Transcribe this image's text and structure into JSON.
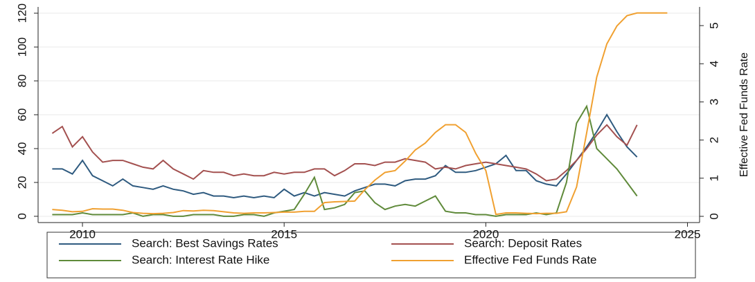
{
  "chart_data": {
    "type": "line",
    "y2label": "Effective Fed Funds Rate",
    "x": [
      2009.25,
      2009.5,
      2009.75,
      2010,
      2010.25,
      2010.5,
      2010.75,
      2011,
      2011.25,
      2011.5,
      2011.75,
      2012,
      2012.25,
      2012.5,
      2012.75,
      2013,
      2013.25,
      2013.5,
      2013.75,
      2014,
      2014.25,
      2014.5,
      2014.75,
      2015,
      2015.25,
      2015.5,
      2015.75,
      2016,
      2016.25,
      2016.5,
      2016.75,
      2017,
      2017.25,
      2017.5,
      2017.75,
      2018,
      2018.25,
      2018.5,
      2018.75,
      2019,
      2019.25,
      2019.5,
      2019.75,
      2020,
      2020.25,
      2020.5,
      2020.75,
      2021,
      2021.25,
      2021.5,
      2021.75,
      2022,
      2022.25,
      2022.5,
      2022.75,
      2023,
      2023.25,
      2023.5,
      2023.75,
      2024,
      2024.25,
      2024.5
    ],
    "series": [
      {
        "name": "Search: Best Savings Rates",
        "color": "#2e5a7f",
        "values": [
          28,
          28,
          25,
          33,
          24,
          21,
          18,
          22,
          18,
          17,
          16,
          18,
          16,
          15,
          13,
          14,
          12,
          12,
          11,
          12,
          11,
          12,
          11,
          16,
          12,
          14,
          12,
          14,
          13,
          12,
          15,
          17,
          19,
          19,
          18,
          21,
          22,
          22,
          24,
          30,
          26,
          26,
          27,
          29,
          31,
          36,
          27,
          27,
          21,
          19,
          18,
          25,
          33,
          41,
          50,
          60,
          50,
          41,
          35,
          null,
          null,
          null
        ]
      },
      {
        "name": "Search: Deposit Rates",
        "color": "#a3504f",
        "values": [
          49,
          53,
          41,
          47,
          38,
          32,
          33,
          33,
          31,
          29,
          28,
          33,
          28,
          25,
          22,
          27,
          26,
          26,
          24,
          25,
          24,
          24,
          26,
          25,
          26,
          26,
          28,
          28,
          24,
          27,
          31,
          31,
          30,
          32,
          32,
          34,
          33,
          32,
          28,
          29,
          28,
          30,
          31,
          32,
          31,
          30,
          29,
          28,
          25,
          21,
          22,
          27,
          33,
          40,
          48,
          54,
          47,
          42,
          54,
          null,
          null,
          null
        ]
      },
      {
        "name": "Search: Interest Rate Hike",
        "color": "#5f8a3a",
        "values": [
          1,
          1,
          1,
          2,
          1,
          1,
          1,
          1,
          2,
          0,
          1,
          1,
          0,
          0,
          1,
          1,
          1,
          0,
          0,
          1,
          1,
          0,
          2,
          3,
          4,
          13,
          23,
          4,
          5,
          7,
          14,
          15,
          8,
          4,
          6,
          7,
          6,
          9,
          12,
          3,
          2,
          2,
          1,
          1,
          0,
          1,
          1,
          1,
          2,
          1,
          2,
          20,
          55,
          65,
          40,
          34,
          28,
          20,
          12,
          null,
          null,
          null
        ]
      },
      {
        "name": "Effective Fed Funds Rate",
        "color": "#f0a030",
        "axis": "y2",
        "values": [
          0.18,
          0.16,
          0.12,
          0.13,
          0.2,
          0.19,
          0.19,
          0.16,
          0.1,
          0.08,
          0.07,
          0.08,
          0.1,
          0.15,
          0.14,
          0.16,
          0.15,
          0.12,
          0.09,
          0.08,
          0.09,
          0.09,
          0.1,
          0.11,
          0.11,
          0.13,
          0.13,
          0.36,
          0.38,
          0.39,
          0.4,
          0.7,
          0.95,
          1.15,
          1.2,
          1.45,
          1.74,
          1.92,
          2.2,
          2.4,
          2.4,
          2.2,
          1.65,
          1.2,
          0.05,
          0.09,
          0.09,
          0.08,
          0.07,
          0.08,
          0.08,
          0.12,
          0.77,
          2.19,
          3.65,
          4.52,
          4.99,
          5.26,
          5.33,
          5.33,
          5.33,
          5.33
        ]
      }
    ],
    "xlim": [
      2008.9,
      2025.3
    ],
    "xticks": [
      2010,
      2015,
      2020,
      2025
    ],
    "ylim": [
      -3.7,
      123.7
    ],
    "yticks": [
      0,
      20,
      40,
      60,
      80,
      100,
      120
    ],
    "y2lim": [
      -0.163,
      5.49
    ],
    "y2ticks": [
      0,
      1,
      2,
      3,
      4,
      5
    ],
    "grid": true
  }
}
